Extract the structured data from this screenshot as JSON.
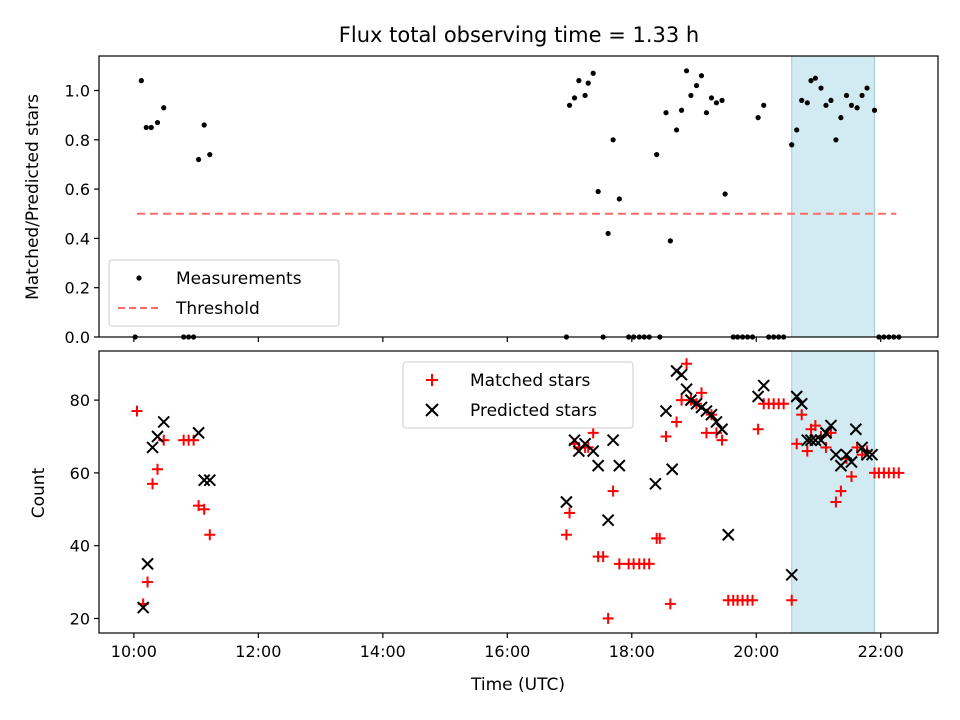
{
  "chart_data": [
    {
      "type": "scatter",
      "title": "Flux total observing time = 1.33 h",
      "xlabel": "",
      "ylabel": "Matched/Predicted stars",
      "xlim": [
        9.44,
        22.92
      ],
      "ylim": [
        0.0,
        1.14
      ],
      "xticks_hours": [
        10,
        12,
        14,
        16,
        18,
        20,
        22
      ],
      "yticks": [
        0.0,
        0.2,
        0.4,
        0.6,
        0.8,
        1.0
      ],
      "ytick_labels": [
        "0.0",
        "0.2",
        "0.4",
        "0.6",
        "0.8",
        "1.0"
      ],
      "highlight_span_hours": [
        20.57,
        21.9
      ],
      "highlight_color": "#add8e6",
      "threshold": {
        "name": "Threshold",
        "value": 0.5,
        "x": [
          10.05,
          22.25
        ],
        "color": "#ff6b6b"
      },
      "series": [
        {
          "name": "Measurements",
          "color": "#000000",
          "marker": "dot",
          "points": [
            [
              10.02,
              0.0
            ],
            [
              10.12,
              1.04
            ],
            [
              10.2,
              0.85
            ],
            [
              10.28,
              0.85
            ],
            [
              10.38,
              0.87
            ],
            [
              10.48,
              0.93
            ],
            [
              10.8,
              0.0
            ],
            [
              10.88,
              0.0
            ],
            [
              10.96,
              0.0
            ],
            [
              11.04,
              0.72
            ],
            [
              11.13,
              0.86
            ],
            [
              11.22,
              0.74
            ],
            [
              16.95,
              0.0
            ],
            [
              17.0,
              0.94
            ],
            [
              17.08,
              0.97
            ],
            [
              17.15,
              1.04
            ],
            [
              17.25,
              0.98
            ],
            [
              17.3,
              1.03
            ],
            [
              17.38,
              1.07
            ],
            [
              17.46,
              0.59
            ],
            [
              17.54,
              0.0
            ],
            [
              17.62,
              0.42
            ],
            [
              17.7,
              0.8
            ],
            [
              17.8,
              0.56
            ],
            [
              17.95,
              0.0
            ],
            [
              18.03,
              0.0
            ],
            [
              18.12,
              0.0
            ],
            [
              18.2,
              0.0
            ],
            [
              18.28,
              0.0
            ],
            [
              18.4,
              0.74
            ],
            [
              18.45,
              0.0
            ],
            [
              18.55,
              0.91
            ],
            [
              18.62,
              0.39
            ],
            [
              18.72,
              0.84
            ],
            [
              18.8,
              0.92
            ],
            [
              18.88,
              1.08
            ],
            [
              18.95,
              0.98
            ],
            [
              19.04,
              1.02
            ],
            [
              19.12,
              1.06
            ],
            [
              19.2,
              0.91
            ],
            [
              19.28,
              0.97
            ],
            [
              19.36,
              0.95
            ],
            [
              19.45,
              0.96
            ],
            [
              19.5,
              0.58
            ],
            [
              19.63,
              0.0
            ],
            [
              19.7,
              0.0
            ],
            [
              19.78,
              0.0
            ],
            [
              19.86,
              0.0
            ],
            [
              19.94,
              0.0
            ],
            [
              20.03,
              0.89
            ],
            [
              20.12,
              0.94
            ],
            [
              20.2,
              0.0
            ],
            [
              20.28,
              0.0
            ],
            [
              20.36,
              0.0
            ],
            [
              20.44,
              0.0
            ],
            [
              20.57,
              0.78
            ],
            [
              20.65,
              0.84
            ],
            [
              20.73,
              0.96
            ],
            [
              20.82,
              0.95
            ],
            [
              20.88,
              1.04
            ],
            [
              20.95,
              1.05
            ],
            [
              21.04,
              1.01
            ],
            [
              21.12,
              0.94
            ],
            [
              21.2,
              0.96
            ],
            [
              21.28,
              0.8
            ],
            [
              21.36,
              0.89
            ],
            [
              21.45,
              0.98
            ],
            [
              21.53,
              0.94
            ],
            [
              21.62,
              0.93
            ],
            [
              21.7,
              0.98
            ],
            [
              21.78,
              1.01
            ],
            [
              21.9,
              0.92
            ],
            [
              21.97,
              0.0
            ],
            [
              22.05,
              0.0
            ],
            [
              22.13,
              0.0
            ],
            [
              22.21,
              0.0
            ],
            [
              22.29,
              0.0
            ]
          ]
        }
      ],
      "legend": [
        "Measurements",
        "Threshold"
      ],
      "legend_position": "lower-left"
    },
    {
      "type": "scatter",
      "title": "",
      "xlabel": "Time (UTC)",
      "ylabel": "Count",
      "xlim": [
        9.44,
        22.92
      ],
      "ylim": [
        16.0,
        93.5
      ],
      "xticks_hours": [
        10,
        12,
        14,
        16,
        18,
        20,
        22
      ],
      "xtick_labels": [
        "10:00",
        "12:00",
        "14:00",
        "16:00",
        "18:00",
        "20:00",
        "22:00"
      ],
      "yticks": [
        20,
        40,
        60,
        80
      ],
      "ytick_labels": [
        "20",
        "40",
        "60",
        "80"
      ],
      "highlight_span_hours": [
        20.57,
        21.9
      ],
      "highlight_color": "#add8e6",
      "series": [
        {
          "name": "Matched stars",
          "color": "#ff0000",
          "marker": "plus",
          "points": [
            [
              10.05,
              77
            ],
            [
              10.15,
              24
            ],
            [
              10.22,
              30
            ],
            [
              10.3,
              57
            ],
            [
              10.38,
              61
            ],
            [
              10.48,
              69
            ],
            [
              10.8,
              69
            ],
            [
              10.88,
              69
            ],
            [
              10.96,
              69
            ],
            [
              11.04,
              51
            ],
            [
              11.13,
              50
            ],
            [
              11.22,
              43
            ],
            [
              16.95,
              43
            ],
            [
              17.0,
              49
            ],
            [
              17.08,
              68
            ],
            [
              17.15,
              67
            ],
            [
              17.25,
              67
            ],
            [
              17.3,
              67
            ],
            [
              17.38,
              71
            ],
            [
              17.46,
              37
            ],
            [
              17.54,
              37
            ],
            [
              17.62,
              20
            ],
            [
              17.7,
              55
            ],
            [
              17.8,
              35
            ],
            [
              17.95,
              35
            ],
            [
              18.03,
              35
            ],
            [
              18.12,
              35
            ],
            [
              18.2,
              35
            ],
            [
              18.28,
              35
            ],
            [
              18.4,
              42
            ],
            [
              18.45,
              42
            ],
            [
              18.55,
              70
            ],
            [
              18.62,
              24
            ],
            [
              18.72,
              74
            ],
            [
              18.8,
              80
            ],
            [
              18.88,
              90
            ],
            [
              18.95,
              80
            ],
            [
              19.04,
              79
            ],
            [
              19.12,
              82
            ],
            [
              19.2,
              71
            ],
            [
              19.28,
              76
            ],
            [
              19.36,
              71
            ],
            [
              19.45,
              69
            ],
            [
              19.55,
              25
            ],
            [
              19.63,
              25
            ],
            [
              19.7,
              25
            ],
            [
              19.78,
              25
            ],
            [
              19.86,
              25
            ],
            [
              19.94,
              25
            ],
            [
              20.03,
              72
            ],
            [
              20.12,
              79
            ],
            [
              20.2,
              79
            ],
            [
              20.28,
              79
            ],
            [
              20.36,
              79
            ],
            [
              20.44,
              79
            ],
            [
              20.57,
              25
            ],
            [
              20.65,
              68
            ],
            [
              20.73,
              76
            ],
            [
              20.82,
              66
            ],
            [
              20.88,
              72
            ],
            [
              20.95,
              73
            ],
            [
              21.04,
              70
            ],
            [
              21.12,
              67
            ],
            [
              21.2,
              71
            ],
            [
              21.28,
              52
            ],
            [
              21.36,
              55
            ],
            [
              21.45,
              64
            ],
            [
              21.53,
              59
            ],
            [
              21.62,
              67
            ],
            [
              21.7,
              65
            ],
            [
              21.78,
              66
            ],
            [
              21.9,
              60
            ],
            [
              21.97,
              60
            ],
            [
              22.05,
              60
            ],
            [
              22.13,
              60
            ],
            [
              22.21,
              60
            ],
            [
              22.29,
              60
            ]
          ]
        },
        {
          "name": "Predicted stars",
          "color": "#000000",
          "marker": "x",
          "points": [
            [
              10.15,
              23
            ],
            [
              10.22,
              35
            ],
            [
              10.3,
              67
            ],
            [
              10.38,
              70
            ],
            [
              10.48,
              74
            ],
            [
              11.04,
              71
            ],
            [
              11.13,
              58
            ],
            [
              11.22,
              58
            ],
            [
              16.95,
              52
            ],
            [
              17.08,
              69
            ],
            [
              17.15,
              66
            ],
            [
              17.25,
              68
            ],
            [
              17.38,
              66
            ],
            [
              17.46,
              62
            ],
            [
              17.62,
              47
            ],
            [
              17.7,
              69
            ],
            [
              17.8,
              62
            ],
            [
              18.38,
              57
            ],
            [
              18.55,
              77
            ],
            [
              18.65,
              61
            ],
            [
              18.72,
              88
            ],
            [
              18.8,
              87
            ],
            [
              18.88,
              83
            ],
            [
              18.95,
              80
            ],
            [
              19.04,
              79
            ],
            [
              19.12,
              78
            ],
            [
              19.2,
              77
            ],
            [
              19.28,
              76
            ],
            [
              19.36,
              74
            ],
            [
              19.45,
              72
            ],
            [
              19.55,
              43
            ],
            [
              20.03,
              81
            ],
            [
              20.12,
              84
            ],
            [
              20.57,
              32
            ],
            [
              20.65,
              81
            ],
            [
              20.73,
              79
            ],
            [
              20.82,
              69
            ],
            [
              20.88,
              69
            ],
            [
              20.95,
              69
            ],
            [
              21.04,
              69
            ],
            [
              21.12,
              71
            ],
            [
              21.2,
              73
            ],
            [
              21.28,
              65
            ],
            [
              21.36,
              62
            ],
            [
              21.45,
              65
            ],
            [
              21.53,
              63
            ],
            [
              21.6,
              72
            ],
            [
              21.7,
              67
            ],
            [
              21.78,
              65
            ],
            [
              21.86,
              65
            ]
          ]
        }
      ],
      "legend": [
        "Matched stars",
        "Predicted stars"
      ],
      "legend_position": "upper-center"
    }
  ]
}
